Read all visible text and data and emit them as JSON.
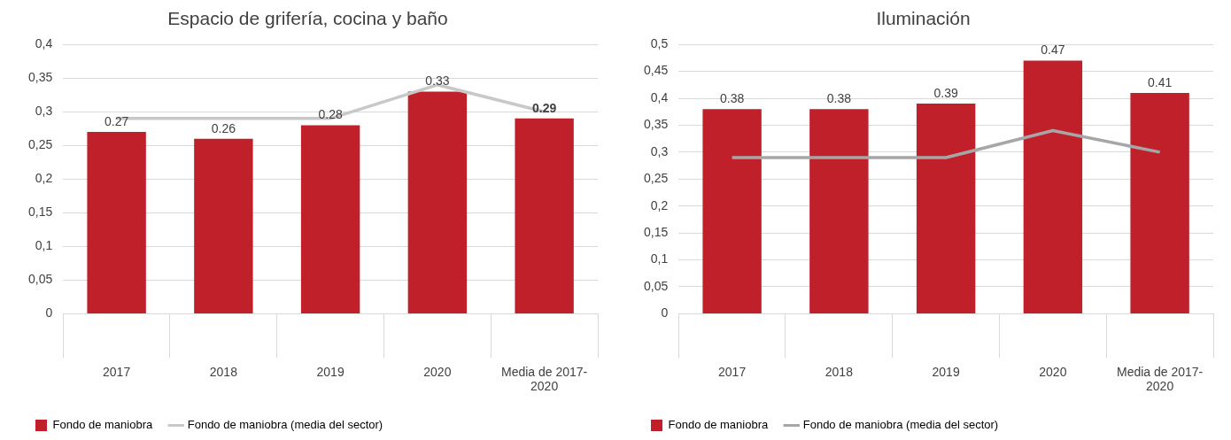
{
  "chart_data": [
    {
      "type": "bar",
      "title": "Espacio de grifería, cocina y baño",
      "categories": [
        "2017",
        "2018",
        "2019",
        "2020",
        "Media de 2017-2020"
      ],
      "series": [
        {
          "name": "Fondo de maniobra",
          "color": "#c0202a",
          "values": [
            0.27,
            0.26,
            0.28,
            0.33,
            0.29
          ],
          "value_labels": [
            "0.27",
            "0.26",
            "0.28",
            "0.33",
            "0.29"
          ]
        },
        {
          "name": "Fondo de maniobra (media del sector)",
          "type": "line",
          "color": "#c8c8c8",
          "values": [
            0.29,
            0.29,
            0.29,
            0.34,
            0.3
          ]
        }
      ],
      "ylim": [
        0,
        0.4
      ],
      "yticks": [
        0,
        {
          "value": 0.05,
          "label": "0,05"
        },
        {
          "value": 0.1,
          "label": "0,1"
        },
        {
          "value": 0.15,
          "label": "0,15"
        },
        {
          "value": 0.2,
          "label": "0,2"
        },
        {
          "value": 0.25,
          "label": "0,25"
        },
        {
          "value": 0.3,
          "label": "0,3"
        },
        {
          "value": 0.35,
          "label": "0,35"
        },
        {
          "value": 0.4,
          "label": "0,4"
        }
      ],
      "grid": "y",
      "legend": "bottom",
      "marker": "none"
    },
    {
      "type": "bar",
      "title": "Iluminación",
      "categories": [
        "2017",
        "2018",
        "2019",
        "2020",
        "Media de 2017-2020"
      ],
      "series": [
        {
          "name": "Fondo de maniobra",
          "color": "#c0202a",
          "values": [
            0.38,
            0.38,
            0.39,
            0.47,
            0.41
          ],
          "value_labels": [
            "0.38",
            "0.38",
            "0.39",
            "0.47",
            "0.41"
          ]
        },
        {
          "name": "Fondo de maniobra (media del sector)",
          "type": "line",
          "color": "#a6a6a6",
          "values": [
            0.29,
            0.29,
            0.29,
            0.34,
            0.3
          ]
        }
      ],
      "ylim": [
        0,
        0.5
      ],
      "yticks": [
        0,
        {
          "value": 0.05,
          "label": "0,05"
        },
        {
          "value": 0.1,
          "label": "0,1"
        },
        {
          "value": 0.15,
          "label": "0,15"
        },
        {
          "value": 0.2,
          "label": "0,2"
        },
        {
          "value": 0.25,
          "label": "0,25"
        },
        {
          "value": 0.3,
          "label": "0,3"
        },
        {
          "value": 0.35,
          "label": "0,35"
        },
        {
          "value": 0.4,
          "label": "0,4"
        },
        {
          "value": 0.45,
          "label": "0,45"
        },
        {
          "value": 0.5,
          "label": "0,5"
        }
      ],
      "grid": "y",
      "legend": "bottom",
      "marker": "none"
    }
  ]
}
